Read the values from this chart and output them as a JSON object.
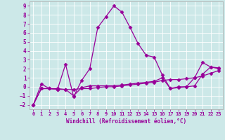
{
  "xlabel": "Windchill (Refroidissement éolien,°C)",
  "xlim": [
    -0.5,
    23.5
  ],
  "ylim": [
    -2.5,
    9.5
  ],
  "yticks": [
    -2,
    -1,
    0,
    1,
    2,
    3,
    4,
    5,
    6,
    7,
    8,
    9
  ],
  "xticks": [
    0,
    1,
    2,
    3,
    4,
    5,
    6,
    7,
    8,
    9,
    10,
    11,
    12,
    13,
    14,
    15,
    16,
    17,
    18,
    19,
    20,
    21,
    22,
    23
  ],
  "bg_color": "#cce8e8",
  "line_color": "#990099",
  "line1_x": [
    0,
    1,
    2,
    3,
    4,
    5,
    6,
    7,
    8,
    9,
    10,
    11,
    12,
    13,
    14,
    15,
    16,
    17,
    18,
    19,
    20,
    21,
    22,
    23
  ],
  "line1_y": [
    -2.0,
    0.3,
    -0.2,
    -0.3,
    2.5,
    -1.1,
    0.7,
    2.0,
    6.6,
    7.8,
    9.0,
    8.3,
    6.6,
    4.8,
    3.5,
    3.3,
    1.3,
    -0.2,
    0.0,
    0.0,
    1.0,
    2.7,
    2.2,
    2.0
  ],
  "line2_x": [
    0,
    1,
    2,
    3,
    4,
    5,
    6,
    7,
    8,
    9,
    10,
    11,
    12,
    13,
    14,
    15,
    16,
    17,
    18,
    19,
    20,
    21,
    22,
    23
  ],
  "line2_y": [
    -2.0,
    -0.2,
    -0.2,
    -0.3,
    -0.3,
    -0.3,
    -0.2,
    -0.2,
    -0.1,
    0.0,
    0.0,
    0.1,
    0.2,
    0.3,
    0.4,
    0.5,
    0.7,
    0.8,
    0.8,
    0.9,
    1.0,
    1.2,
    1.5,
    1.8
  ],
  "line3_x": [
    0,
    1,
    2,
    3,
    4,
    5,
    6,
    7,
    8,
    9,
    10,
    11,
    12,
    13,
    14,
    15,
    16,
    17,
    18,
    19,
    20,
    21,
    22,
    23
  ],
  "line3_y": [
    -2.0,
    -0.2,
    -0.2,
    -0.2,
    -0.3,
    -1.0,
    -0.1,
    0.1,
    0.1,
    0.1,
    0.1,
    0.2,
    0.3,
    0.4,
    0.5,
    0.6,
    1.0,
    -0.2,
    -0.1,
    0.0,
    0.1,
    1.4,
    2.2,
    2.1
  ],
  "grid_color": "#ffffff",
  "spine_color": "#aaaaaa",
  "tick_fontsize": 5.0,
  "xlabel_fontsize": 5.5,
  "marker": "D",
  "markersize": 2.5,
  "linewidth": 0.9
}
